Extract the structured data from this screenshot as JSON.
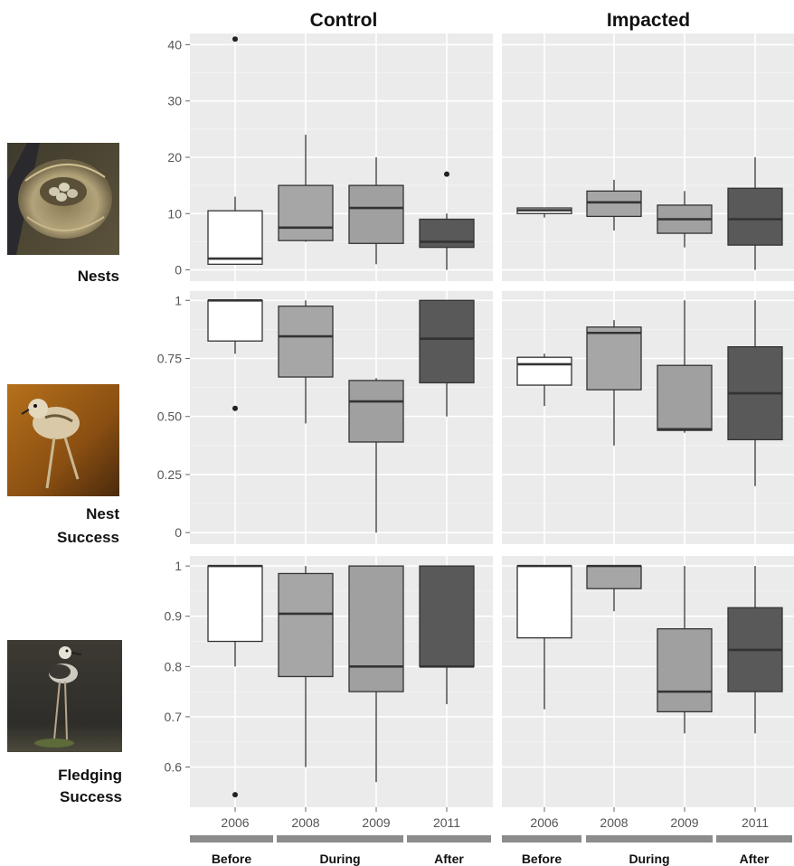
{
  "figure": {
    "column_titles": [
      "Control",
      "Impacted"
    ],
    "row_labels": [
      [
        "Nests"
      ],
      [
        "Nest",
        "Success"
      ],
      [
        "Fledging",
        "Success"
      ]
    ],
    "phase_labels": [
      "Before",
      "During",
      "After"
    ],
    "colors": {
      "panel_bg": "#ebebeb",
      "grid": "#ffffff",
      "box_fills": [
        "#ffffff",
        "#a6a6a6",
        "#a0a0a0",
        "#595959"
      ],
      "phase_bar": "#8c8c8c"
    },
    "photos": [
      "bird-nest-with-eggs-photo",
      "stilt-chick-photo",
      "juvenile-stilt-photo"
    ]
  },
  "chart_data": {
    "type": "boxplot",
    "categories": [
      "2006",
      "2008",
      "2009",
      "2011"
    ],
    "phases": [
      {
        "label": "Before",
        "categories": [
          "2006"
        ]
      },
      {
        "label": "During",
        "categories": [
          "2008",
          "2009"
        ]
      },
      {
        "label": "After",
        "categories": [
          "2011"
        ]
      }
    ],
    "facets": {
      "columns": [
        "Control",
        "Impacted"
      ],
      "rows": [
        "Nests",
        "Nest Success",
        "Fledging Success"
      ]
    },
    "rows": [
      {
        "name": "Nests",
        "ylim": [
          -2,
          42
        ],
        "yticks": [
          0,
          10,
          20,
          30,
          40
        ],
        "ytick_labels": [
          "0",
          "10",
          "20",
          "30",
          "40"
        ],
        "panels": [
          {
            "column": "Control",
            "boxes": [
              {
                "x": "2006",
                "whisker_low": 1,
                "q1": 1,
                "median": 2,
                "q3": 10.5,
                "whisker_high": 13,
                "outliers": [
                  41
                ]
              },
              {
                "x": "2008",
                "whisker_low": 5,
                "q1": 5.2,
                "median": 7.5,
                "q3": 15,
                "whisker_high": 24,
                "outliers": []
              },
              {
                "x": "2009",
                "whisker_low": 1,
                "q1": 4.7,
                "median": 11,
                "q3": 15,
                "whisker_high": 20,
                "outliers": []
              },
              {
                "x": "2011",
                "whisker_low": 0,
                "q1": 4,
                "median": 5,
                "q3": 9,
                "whisker_high": 10,
                "outliers": [
                  17
                ]
              }
            ]
          },
          {
            "column": "Impacted",
            "boxes": [
              {
                "x": "2006",
                "whisker_low": 9.3,
                "q1": 10,
                "median": 10.6,
                "q3": 11,
                "whisker_high": 11,
                "outliers": []
              },
              {
                "x": "2008",
                "whisker_low": 7,
                "q1": 9.5,
                "median": 12,
                "q3": 14,
                "whisker_high": 16,
                "outliers": []
              },
              {
                "x": "2009",
                "whisker_low": 4,
                "q1": 6.5,
                "median": 9,
                "q3": 11.5,
                "whisker_high": 14,
                "outliers": []
              },
              {
                "x": "2011",
                "whisker_low": 0,
                "q1": 4.4,
                "median": 9,
                "q3": 14.5,
                "whisker_high": 20,
                "outliers": []
              }
            ]
          }
        ]
      },
      {
        "name": "Nest Success",
        "ylim": [
          -0.05,
          1.04
        ],
        "yticks": [
          0,
          0.25,
          0.5,
          0.75,
          1
        ],
        "ytick_labels": [
          "0",
          "0.25",
          "0.50",
          "0.75",
          "1"
        ],
        "panels": [
          {
            "column": "Control",
            "boxes": [
              {
                "x": "2006",
                "whisker_low": 0.77,
                "q1": 0.825,
                "median": 1,
                "q3": 1,
                "whisker_high": 1,
                "outliers": [
                  0.535
                ]
              },
              {
                "x": "2008",
                "whisker_low": 0.47,
                "q1": 0.67,
                "median": 0.845,
                "q3": 0.975,
                "whisker_high": 1,
                "outliers": []
              },
              {
                "x": "2009",
                "whisker_low": 0,
                "q1": 0.39,
                "median": 0.565,
                "q3": 0.655,
                "whisker_high": 0.665,
                "outliers": []
              },
              {
                "x": "2011",
                "whisker_low": 0.5,
                "q1": 0.645,
                "median": 0.835,
                "q3": 1,
                "whisker_high": 1,
                "outliers": []
              }
            ]
          },
          {
            "column": "Impacted",
            "boxes": [
              {
                "x": "2006",
                "whisker_low": 0.545,
                "q1": 0.635,
                "median": 0.725,
                "q3": 0.755,
                "whisker_high": 0.77,
                "outliers": []
              },
              {
                "x": "2008",
                "whisker_low": 0.375,
                "q1": 0.615,
                "median": 0.86,
                "q3": 0.885,
                "whisker_high": 0.915,
                "outliers": []
              },
              {
                "x": "2009",
                "whisker_low": 0.43,
                "q1": 0.44,
                "median": 0.445,
                "q3": 0.72,
                "whisker_high": 1,
                "outliers": []
              },
              {
                "x": "2011",
                "whisker_low": 0.2,
                "q1": 0.4,
                "median": 0.6,
                "q3": 0.8,
                "whisker_high": 1,
                "outliers": []
              }
            ]
          }
        ]
      },
      {
        "name": "Fledging Success",
        "ylim": [
          0.52,
          1.02
        ],
        "yticks": [
          0.6,
          0.7,
          0.8,
          0.9,
          1
        ],
        "ytick_labels": [
          "0.6",
          "0.7",
          "0.8",
          "0.9",
          "1"
        ],
        "panels": [
          {
            "column": "Control",
            "boxes": [
              {
                "x": "2006",
                "whisker_low": 0.8,
                "q1": 0.85,
                "median": 1,
                "q3": 1,
                "whisker_high": 1,
                "outliers": [
                  0.545
                ]
              },
              {
                "x": "2008",
                "whisker_low": 0.6,
                "q1": 0.78,
                "median": 0.905,
                "q3": 0.985,
                "whisker_high": 1,
                "outliers": []
              },
              {
                "x": "2009",
                "whisker_low": 0.57,
                "q1": 0.75,
                "median": 0.8,
                "q3": 1,
                "whisker_high": 1,
                "outliers": []
              },
              {
                "x": "2011",
                "whisker_low": 0.725,
                "q1": 0.8,
                "median": 0.8,
                "q3": 1,
                "whisker_high": 1,
                "outliers": []
              }
            ]
          },
          {
            "column": "Impacted",
            "boxes": [
              {
                "x": "2006",
                "whisker_low": 0.715,
                "q1": 0.857,
                "median": 1,
                "q3": 1,
                "whisker_high": 1,
                "outliers": []
              },
              {
                "x": "2008",
                "whisker_low": 0.91,
                "q1": 0.955,
                "median": 1,
                "q3": 1,
                "whisker_high": 1,
                "outliers": []
              },
              {
                "x": "2009",
                "whisker_low": 0.667,
                "q1": 0.71,
                "median": 0.75,
                "q3": 0.875,
                "whisker_high": 1,
                "outliers": []
              },
              {
                "x": "2011",
                "whisker_low": 0.667,
                "q1": 0.75,
                "median": 0.833,
                "q3": 0.917,
                "whisker_high": 1,
                "outliers": []
              }
            ]
          }
        ]
      }
    ]
  }
}
